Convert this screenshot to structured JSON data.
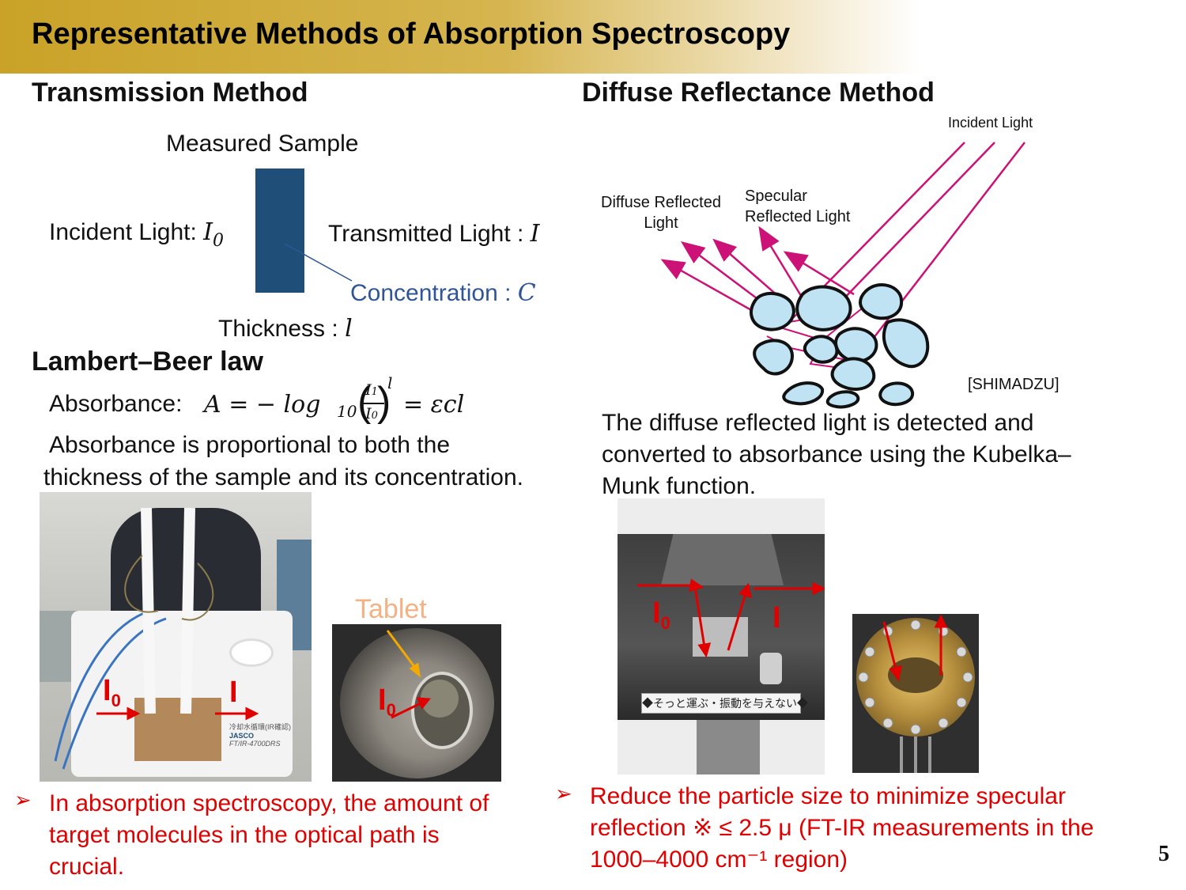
{
  "slide": {
    "title": "Representative Methods of Absorption Spectroscopy",
    "page_number": "5"
  },
  "transmission": {
    "heading": "Transmission Method",
    "measured_sample": "Measured Sample",
    "incident_label": "Incident Light: ",
    "incident_symbol": "I",
    "incident_sub": "0",
    "transmitted_label": "Transmitted Light : ",
    "transmitted_symbol": "I",
    "concentration_label": "Concentration : ",
    "concentration_symbol": "C",
    "thickness_label": "Thickness : ",
    "thickness_symbol": "l"
  },
  "lambert_beer": {
    "heading": "Lambert–Beer law",
    "absorbance_label": "Absorbance: ",
    "formula_lhs": "A = − log",
    "formula_base": "10",
    "formula_num": "I",
    "formula_num_sub": "1",
    "formula_den": "I",
    "formula_den_sub": "0",
    "formula_exp": "l",
    "formula_rhs": "= εcl",
    "description_line1": "Absorbance is proportional to both the",
    "description_line2": "thickness of the sample and its concentration."
  },
  "diffuse": {
    "heading": "Diffuse Reflectance Method",
    "incident_light": "Incident Light",
    "diffuse_reflected_line1": "Diffuse Reflected",
    "diffuse_reflected_line2": "Light",
    "specular_line1": "Specular",
    "specular_line2": "Reflected Light",
    "source": "[SHIMADZU]",
    "description_line1": "The diffuse reflected light is detected and",
    "description_line2": "converted to absorbance using the Kubelka–",
    "description_line3": "Munk function."
  },
  "photos": {
    "i0_label": "I",
    "i0_sub": "0",
    "i_label": "I",
    "tablet_label": "Tablet",
    "instrument_caption": "◆そっと運ぶ・振動を与えない◆",
    "spectrometer_text_1": "JASCO",
    "spectrometer_text_2": "FT/IR-4700DRS",
    "spectrometer_text_3": "冷却水循環(IR確認)"
  },
  "bullets": {
    "marker": "➢",
    "left_line1": "In absorption spectroscopy, the amount of",
    "left_line2": "target molecules in the optical path is",
    "left_line3": "crucial.",
    "right_line1": "Reduce the particle size to minimize specular",
    "right_line2": "reflection ※ ≤ 2.5 μ (FT-IR measurements in the",
    "right_line3": "1000–4000 cm⁻¹ region)"
  },
  "colors": {
    "gold": "#c9a227",
    "sample_blue": "#1f4e79",
    "concentration_blue": "#2f5597",
    "magenta": "#cc1177",
    "red": "#e00000",
    "tablet_orange": "#f4b183",
    "particle_fill": "#bfe3f2"
  }
}
